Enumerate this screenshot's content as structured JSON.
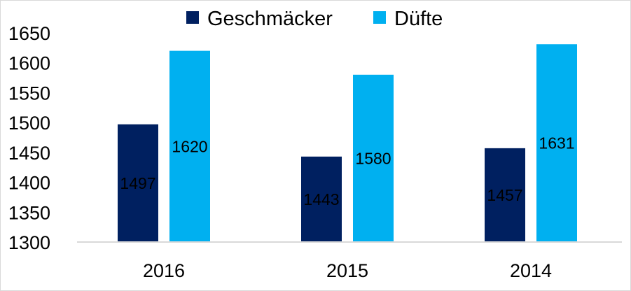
{
  "colors": {
    "series_0": "#002060",
    "series_1": "#00b0f0",
    "axis_line": "#d9d9d9"
  },
  "chart_data": {
    "type": "bar",
    "title": "",
    "xlabel": "",
    "ylabel": "",
    "categories": [
      "2016",
      "2015",
      "2014"
    ],
    "series": [
      {
        "name": "Geschmäcker",
        "values": [
          1497,
          1443,
          1457
        ]
      },
      {
        "name": "Düfte",
        "values": [
          1620,
          1580,
          1631
        ]
      }
    ],
    "ylim": [
      1300,
      1650
    ],
    "yticks": [
      1300,
      1350,
      1400,
      1450,
      1500,
      1550,
      1600,
      1650
    ],
    "grid": false,
    "legend": "top-center",
    "data_labels": true
  }
}
